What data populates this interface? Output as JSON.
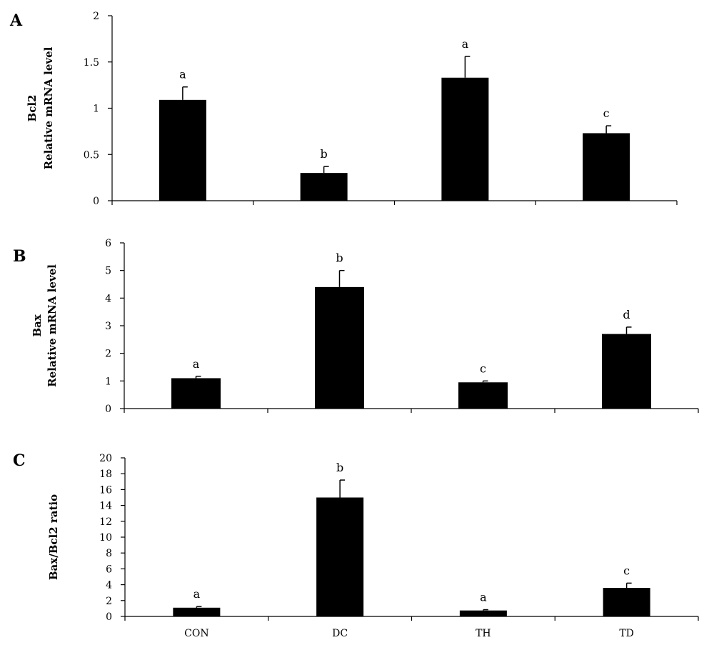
{
  "chart_data": [
    {
      "type": "bar",
      "panel": "A",
      "ylabel_lines": [
        "Bcl2",
        "Relative mRNA level"
      ],
      "categories": [
        "CON",
        "DC",
        "TH",
        "TD"
      ],
      "values": [
        1.09,
        0.3,
        1.33,
        0.73
      ],
      "errors": [
        0.14,
        0.07,
        0.23,
        0.08
      ],
      "sig_labels": [
        "a",
        "b",
        "a",
        "c"
      ],
      "ylim": [
        0,
        2
      ],
      "yticks": [
        0,
        0.5,
        1,
        1.5,
        2
      ],
      "ytick_labels": [
        "0",
        "0.5",
        "1",
        "1.5",
        "2"
      ],
      "show_category_labels": false,
      "grid": false
    },
    {
      "type": "bar",
      "panel": "B",
      "ylabel_lines": [
        "Bax",
        "Relative mRNA level"
      ],
      "categories": [
        "CON",
        "DC",
        "TH",
        "TD"
      ],
      "values": [
        1.1,
        4.4,
        0.95,
        2.7
      ],
      "errors": [
        0.07,
        0.6,
        0.05,
        0.25
      ],
      "sig_labels": [
        "a",
        "b",
        "c",
        "d"
      ],
      "ylim": [
        0,
        6
      ],
      "yticks": [
        0,
        1,
        2,
        3,
        4,
        5,
        6
      ],
      "ytick_labels": [
        "0",
        "1",
        "2",
        "3",
        "4",
        "5",
        "6"
      ],
      "show_category_labels": false,
      "grid": false
    },
    {
      "type": "bar",
      "panel": "C",
      "ylabel_lines": [
        "Bax/Bcl2 ratio"
      ],
      "categories": [
        "CON",
        "DC",
        "TH",
        "TD"
      ],
      "values": [
        1.1,
        15.0,
        0.75,
        3.6
      ],
      "errors": [
        0.15,
        2.2,
        0.1,
        0.6
      ],
      "sig_labels": [
        "a",
        "b",
        "a",
        "c"
      ],
      "ylim": [
        0,
        20
      ],
      "yticks": [
        0,
        2,
        4,
        6,
        8,
        10,
        12,
        14,
        16,
        18,
        20
      ],
      "ytick_labels": [
        "0",
        "2",
        "4",
        "6",
        "8",
        "10",
        "12",
        "14",
        "16",
        "18",
        "20"
      ],
      "show_category_labels": true,
      "grid": false
    }
  ],
  "colors": {
    "bar": "#000000",
    "axis": "#000000"
  }
}
